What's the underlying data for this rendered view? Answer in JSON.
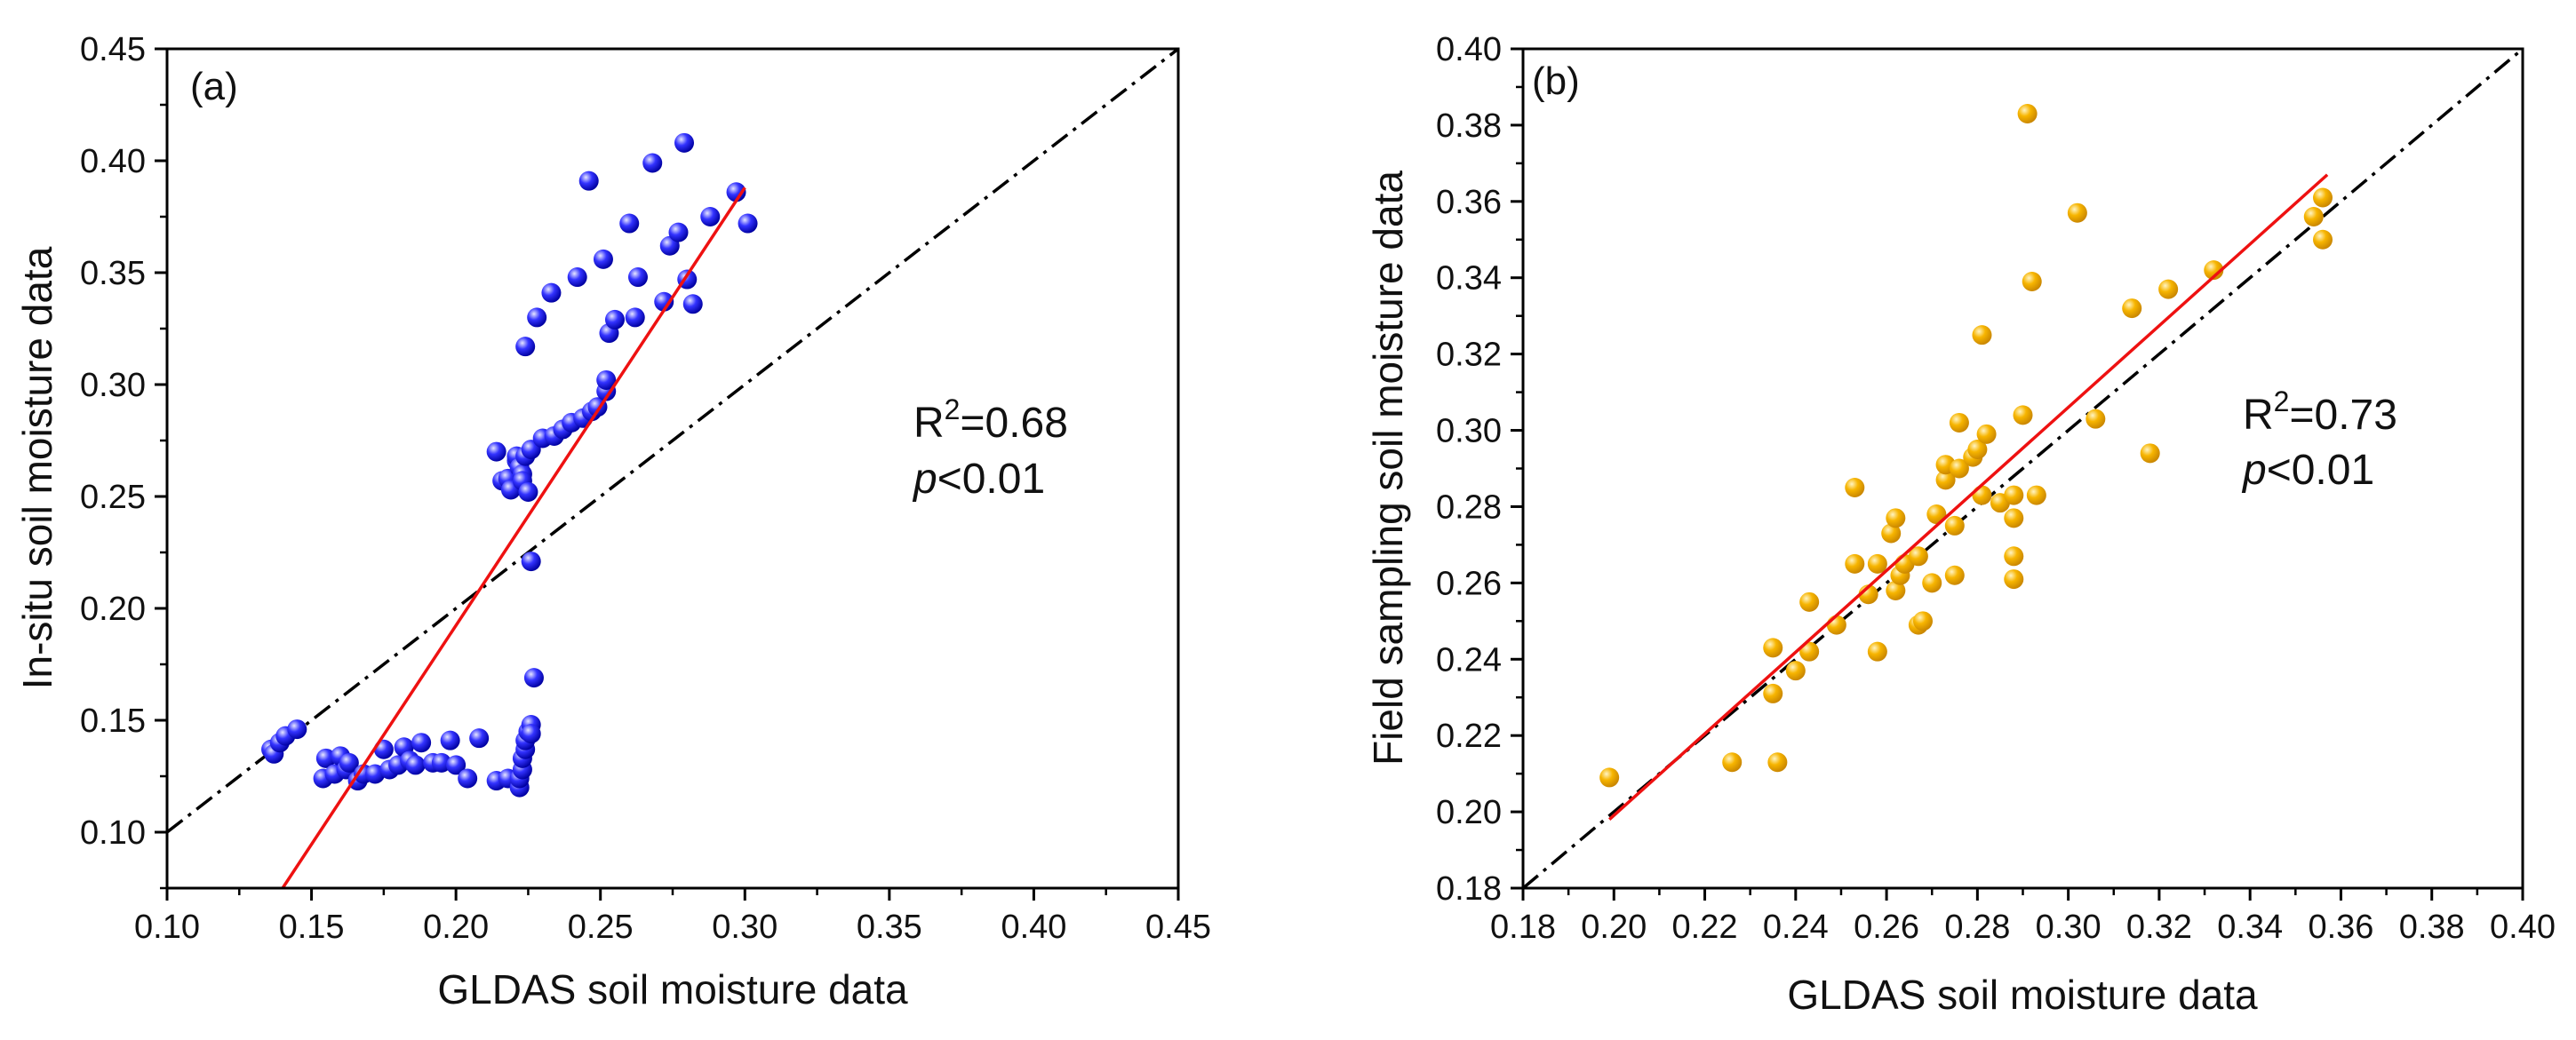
{
  "colors": {
    "panel_a_marker": "#1a1aff",
    "panel_b_marker": "#f5b400",
    "fit_line": "#ee1111",
    "one_to_one_line": "#000000"
  },
  "chart_data": [
    {
      "type": "scatter",
      "panel_label": "(a)",
      "xlabel": "GLDAS soil moisture data",
      "ylabel": "In-situ soil moisture data",
      "xlim": [
        0.1,
        0.45
      ],
      "ylim": [
        0.075,
        0.45
      ],
      "xticks": [
        "0.10",
        "0.15",
        "0.20",
        "0.25",
        "0.30",
        "0.35",
        "0.40",
        "0.45"
      ],
      "yticks": [
        "0.10",
        "0.15",
        "0.20",
        "0.25",
        "0.30",
        "0.35",
        "0.40",
        "0.45"
      ],
      "annotation": {
        "r2_prefix": "R",
        "r2_sup": "2",
        "r2_value": "=0.68",
        "p_var": "p",
        "p_text": "<0.01"
      },
      "fit_line": {
        "x": [
          0.14,
          0.3
        ],
        "y": [
          0.075,
          0.388
        ]
      },
      "one_to_one": {
        "x": [
          0.1,
          0.45
        ],
        "y": [
          0.1,
          0.45
        ]
      },
      "points": [
        [
          0.136,
          0.137
        ],
        [
          0.137,
          0.135
        ],
        [
          0.139,
          0.14
        ],
        [
          0.141,
          0.143
        ],
        [
          0.145,
          0.146
        ],
        [
          0.154,
          0.124
        ],
        [
          0.155,
          0.133
        ],
        [
          0.158,
          0.126
        ],
        [
          0.16,
          0.134
        ],
        [
          0.162,
          0.128
        ],
        [
          0.163,
          0.131
        ],
        [
          0.166,
          0.123
        ],
        [
          0.168,
          0.126
        ],
        [
          0.172,
          0.126
        ],
        [
          0.175,
          0.137
        ],
        [
          0.177,
          0.128
        ],
        [
          0.18,
          0.13
        ],
        [
          0.182,
          0.138
        ],
        [
          0.184,
          0.132
        ],
        [
          0.186,
          0.13
        ],
        [
          0.188,
          0.14
        ],
        [
          0.192,
          0.131
        ],
        [
          0.195,
          0.131
        ],
        [
          0.198,
          0.141
        ],
        [
          0.2,
          0.13
        ],
        [
          0.204,
          0.124
        ],
        [
          0.208,
          0.142
        ],
        [
          0.214,
          0.123
        ],
        [
          0.218,
          0.124
        ],
        [
          0.222,
          0.12
        ],
        [
          0.222,
          0.124
        ],
        [
          0.223,
          0.128
        ],
        [
          0.223,
          0.133
        ],
        [
          0.224,
          0.137
        ],
        [
          0.224,
          0.141
        ],
        [
          0.225,
          0.145
        ],
        [
          0.226,
          0.148
        ],
        [
          0.226,
          0.144
        ],
        [
          0.227,
          0.169
        ],
        [
          0.226,
          0.221
        ],
        [
          0.214,
          0.27
        ],
        [
          0.216,
          0.257
        ],
        [
          0.218,
          0.258
        ],
        [
          0.219,
          0.253
        ],
        [
          0.221,
          0.266
        ],
        [
          0.221,
          0.268
        ],
        [
          0.222,
          0.263
        ],
        [
          0.223,
          0.26
        ],
        [
          0.223,
          0.257
        ],
        [
          0.224,
          0.268
        ],
        [
          0.225,
          0.252
        ],
        [
          0.224,
          0.317
        ],
        [
          0.226,
          0.271
        ],
        [
          0.228,
          0.33
        ],
        [
          0.23,
          0.276
        ],
        [
          0.233,
          0.341
        ],
        [
          0.234,
          0.277
        ],
        [
          0.237,
          0.28
        ],
        [
          0.24,
          0.283
        ],
        [
          0.242,
          0.348
        ],
        [
          0.244,
          0.285
        ],
        [
          0.246,
          0.391
        ],
        [
          0.247,
          0.288
        ],
        [
          0.249,
          0.29
        ],
        [
          0.251,
          0.356
        ],
        [
          0.252,
          0.297
        ],
        [
          0.252,
          0.302
        ],
        [
          0.253,
          0.323
        ],
        [
          0.255,
          0.329
        ],
        [
          0.26,
          0.372
        ],
        [
          0.262,
          0.33
        ],
        [
          0.263,
          0.348
        ],
        [
          0.268,
          0.399
        ],
        [
          0.272,
          0.337
        ],
        [
          0.274,
          0.362
        ],
        [
          0.277,
          0.368
        ],
        [
          0.279,
          0.408
        ],
        [
          0.28,
          0.347
        ],
        [
          0.282,
          0.336
        ],
        [
          0.288,
          0.375
        ],
        [
          0.297,
          0.386
        ],
        [
          0.301,
          0.372
        ]
      ]
    },
    {
      "type": "scatter",
      "panel_label": "(b)",
      "xlabel": "GLDAS soil moisture data",
      "ylabel": "Field sampling soil moisture data",
      "xlim": [
        0.18,
        0.4
      ],
      "ylim": [
        0.18,
        0.4
      ],
      "xticks": [
        "0.18",
        "0.20",
        "0.22",
        "0.24",
        "0.26",
        "0.28",
        "0.30",
        "0.32",
        "0.34",
        "0.36",
        "0.38",
        "0.40"
      ],
      "yticks": [
        "0.18",
        "0.20",
        "0.22",
        "0.24",
        "0.26",
        "0.28",
        "0.30",
        "0.32",
        "0.34",
        "0.36",
        "0.38",
        "0.40"
      ],
      "annotation": {
        "r2_prefix": "R",
        "r2_sup": "2",
        "r2_value": "=0.73",
        "p_var": "p",
        "p_text": "<0.01"
      },
      "fit_line": {
        "x": [
          0.199,
          0.357
        ],
        "y": [
          0.198,
          0.367
        ]
      },
      "one_to_one": {
        "x": [
          0.18,
          0.4
        ],
        "y": [
          0.18,
          0.4
        ]
      },
      "points": [
        [
          0.199,
          0.209
        ],
        [
          0.226,
          0.213
        ],
        [
          0.236,
          0.213
        ],
        [
          0.235,
          0.243
        ],
        [
          0.235,
          0.231
        ],
        [
          0.24,
          0.237
        ],
        [
          0.243,
          0.255
        ],
        [
          0.243,
          0.242
        ],
        [
          0.249,
          0.249
        ],
        [
          0.253,
          0.285
        ],
        [
          0.253,
          0.265
        ],
        [
          0.256,
          0.257
        ],
        [
          0.258,
          0.242
        ],
        [
          0.258,
          0.265
        ],
        [
          0.261,
          0.273
        ],
        [
          0.262,
          0.277
        ],
        [
          0.262,
          0.258
        ],
        [
          0.263,
          0.262
        ],
        [
          0.264,
          0.265
        ],
        [
          0.267,
          0.249
        ],
        [
          0.267,
          0.267
        ],
        [
          0.268,
          0.25
        ],
        [
          0.27,
          0.26
        ],
        [
          0.271,
          0.278
        ],
        [
          0.273,
          0.287
        ],
        [
          0.273,
          0.291
        ],
        [
          0.275,
          0.275
        ],
        [
          0.275,
          0.262
        ],
        [
          0.276,
          0.302
        ],
        [
          0.276,
          0.29
        ],
        [
          0.279,
          0.293
        ],
        [
          0.28,
          0.295
        ],
        [
          0.281,
          0.325
        ],
        [
          0.281,
          0.283
        ],
        [
          0.282,
          0.299
        ],
        [
          0.285,
          0.281
        ],
        [
          0.288,
          0.283
        ],
        [
          0.288,
          0.277
        ],
        [
          0.288,
          0.267
        ],
        [
          0.288,
          0.261
        ],
        [
          0.29,
          0.304
        ],
        [
          0.291,
          0.383
        ],
        [
          0.292,
          0.339
        ],
        [
          0.293,
          0.283
        ],
        [
          0.302,
          0.357
        ],
        [
          0.306,
          0.303
        ],
        [
          0.314,
          0.332
        ],
        [
          0.318,
          0.294
        ],
        [
          0.322,
          0.337
        ],
        [
          0.332,
          0.342
        ],
        [
          0.354,
          0.356
        ],
        [
          0.356,
          0.361
        ],
        [
          0.356,
          0.35
        ]
      ]
    }
  ]
}
